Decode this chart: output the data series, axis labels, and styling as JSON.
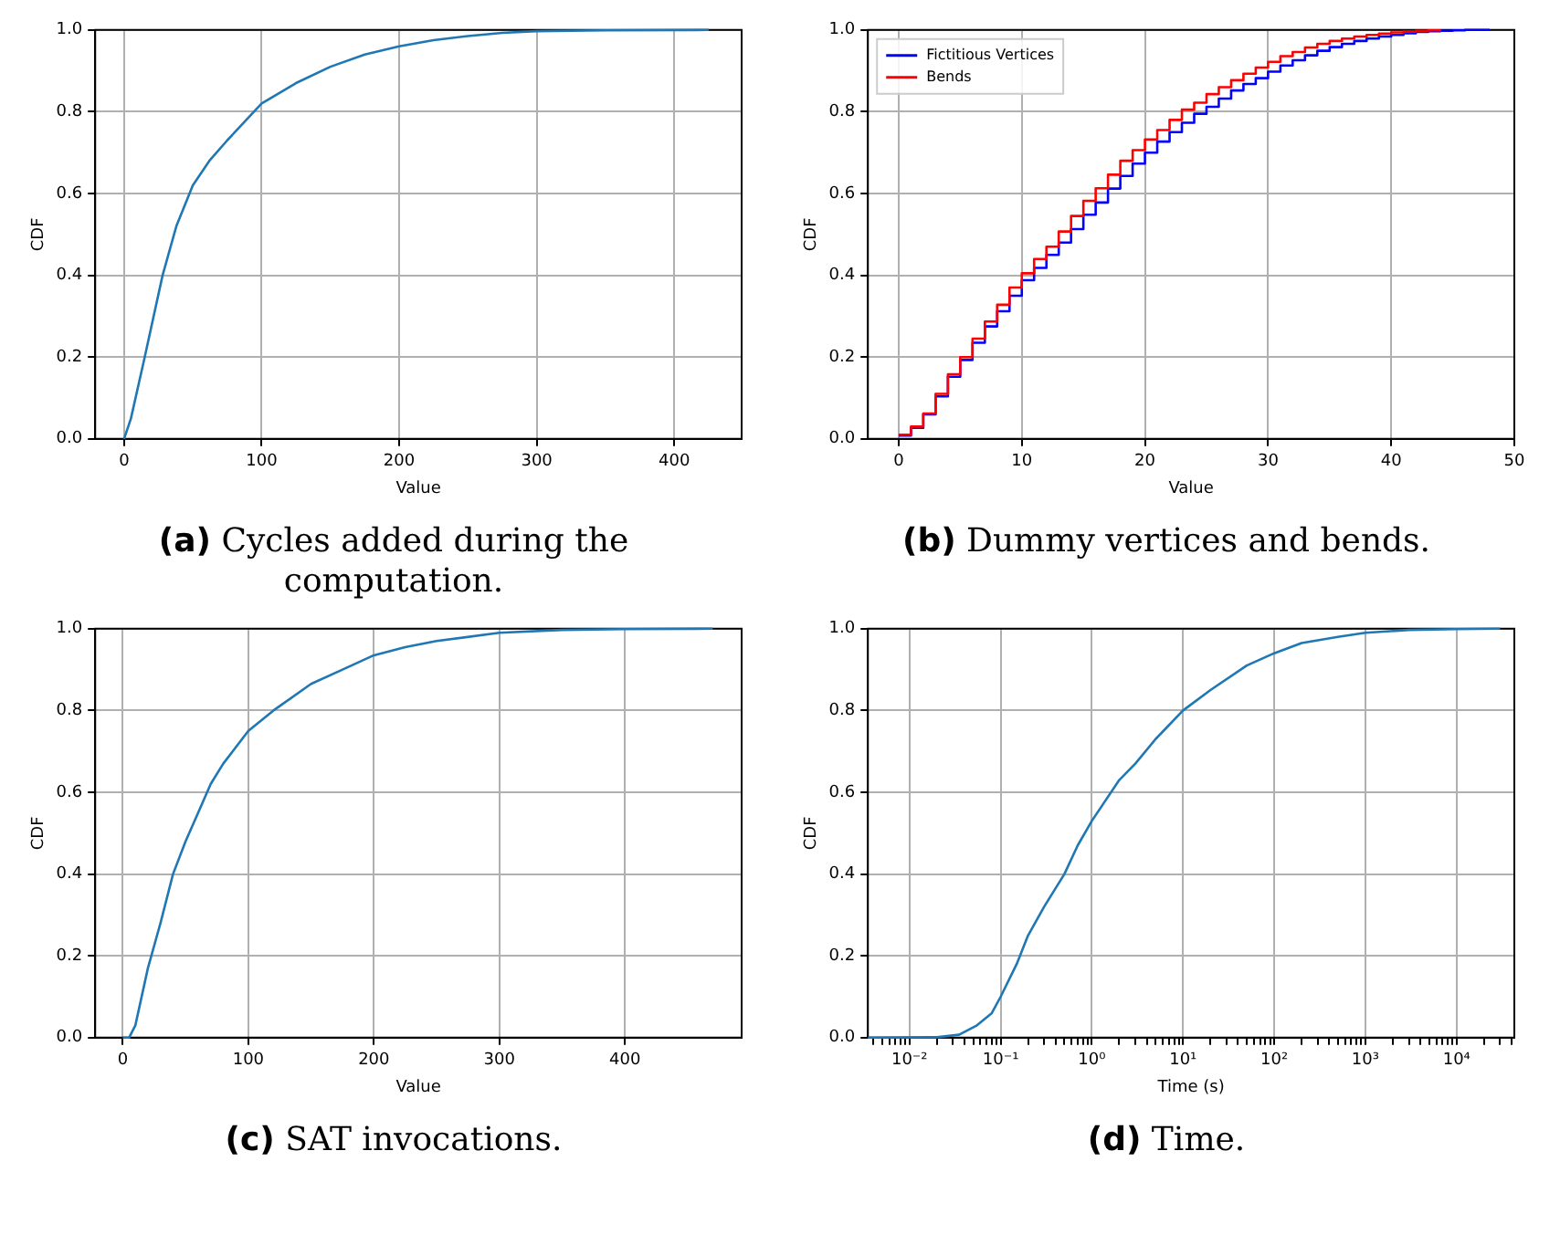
{
  "chart_data": [
    {
      "type": "line",
      "xlabel": "Value",
      "ylabel": "CDF",
      "annotations": [
        "(a) Cycles added during the computation."
      ],
      "grid": true,
      "xlim": [
        -21,
        449
      ],
      "ylim": [
        0,
        1
      ],
      "xticks": [
        0,
        100,
        200,
        300,
        400
      ],
      "yticks": [
        {
          "value": 0,
          "label": "0.0"
        },
        {
          "value": 0.2,
          "label": "0.2"
        },
        {
          "value": 0.4,
          "label": "0.4"
        },
        {
          "value": 0.6,
          "label": "0.6"
        },
        {
          "value": 0.8,
          "label": "0.8"
        },
        {
          "value": 1,
          "label": "1.0"
        }
      ],
      "x": [
        0,
        5,
        15,
        28,
        38,
        50,
        62,
        75,
        100,
        125,
        150,
        175,
        200,
        225,
        250,
        275,
        300,
        350,
        425
      ],
      "series": [
        {
          "color": "#1f77b4",
          "values": [
            0,
            0.05,
            0.2,
            0.4,
            0.52,
            0.62,
            0.68,
            0.73,
            0.82,
            0.87,
            0.91,
            0.94,
            0.96,
            0.975,
            0.985,
            0.993,
            0.997,
            0.999,
            1
          ]
        }
      ]
    },
    {
      "type": "step",
      "xlabel": "Value",
      "ylabel": "CDF",
      "annotations": [
        "(b) Dummy vertices and bends."
      ],
      "grid": true,
      "legend": "top left",
      "xlim": [
        -2.5,
        50
      ],
      "ylim": [
        0,
        1
      ],
      "xticks": [
        0,
        10,
        20,
        30,
        40,
        50
      ],
      "yticks": [
        {
          "value": 0,
          "label": "0.0"
        },
        {
          "value": 0.2,
          "label": "0.2"
        },
        {
          "value": 0.4,
          "label": "0.4"
        },
        {
          "value": 0.6,
          "label": "0.6"
        },
        {
          "value": 0.8,
          "label": "0.8"
        },
        {
          "value": 1,
          "label": "1.0"
        }
      ],
      "x": [
        0,
        1,
        2,
        3,
        4,
        5,
        6,
        7,
        8,
        9,
        10,
        11,
        12,
        13,
        14,
        15,
        16,
        17,
        18,
        19,
        20,
        21,
        22,
        23,
        24,
        25,
        26,
        27,
        28,
        29,
        30,
        31,
        32,
        33,
        34,
        35,
        36,
        37,
        38,
        39,
        40,
        41,
        42,
        43,
        44,
        45,
        46,
        48
      ],
      "series": [
        {
          "name": "Fictitious Vertices",
          "color": "#0000ff",
          "values": [
            0.008,
            0.027,
            0.06,
            0.104,
            0.152,
            0.193,
            0.235,
            0.275,
            0.312,
            0.35,
            0.388,
            0.418,
            0.45,
            0.48,
            0.513,
            0.548,
            0.578,
            0.612,
            0.643,
            0.673,
            0.7,
            0.727,
            0.75,
            0.773,
            0.795,
            0.812,
            0.832,
            0.852,
            0.868,
            0.882,
            0.898,
            0.913,
            0.926,
            0.938,
            0.949,
            0.958,
            0.966,
            0.973,
            0.979,
            0.984,
            0.988,
            0.992,
            0.995,
            0.997,
            0.998,
            0.999,
            1,
            1
          ]
        },
        {
          "name": "Bends",
          "color": "#ff0000",
          "x": [
            0,
            1,
            2,
            3,
            4,
            5,
            6,
            7,
            8,
            9,
            10,
            11,
            12,
            13,
            14,
            15,
            16,
            17,
            18,
            19,
            20,
            21,
            22,
            23,
            24,
            25,
            26,
            27,
            28,
            29,
            30,
            31,
            32,
            33,
            34,
            35,
            36,
            37,
            38,
            39,
            40,
            41,
            42,
            43,
            44
          ],
          "values": [
            0.01,
            0.03,
            0.062,
            0.11,
            0.158,
            0.2,
            0.245,
            0.287,
            0.328,
            0.37,
            0.405,
            0.44,
            0.47,
            0.507,
            0.545,
            0.582,
            0.613,
            0.646,
            0.68,
            0.706,
            0.732,
            0.755,
            0.78,
            0.805,
            0.822,
            0.843,
            0.86,
            0.877,
            0.893,
            0.908,
            0.922,
            0.936,
            0.946,
            0.957,
            0.966,
            0.973,
            0.979,
            0.984,
            0.988,
            0.991,
            0.994,
            0.996,
            0.998,
            0.999,
            1
          ]
        }
      ]
    },
    {
      "type": "line",
      "xlabel": "Value",
      "ylabel": "CDF",
      "annotations": [
        "(c) SAT invocations."
      ],
      "grid": true,
      "xlim": [
        -22,
        493
      ],
      "ylim": [
        0,
        1
      ],
      "xticks": [
        0,
        100,
        200,
        300,
        400
      ],
      "yticks": [
        {
          "value": 0,
          "label": "0.0"
        },
        {
          "value": 0.2,
          "label": "0.2"
        },
        {
          "value": 0.4,
          "label": "0.4"
        },
        {
          "value": 0.6,
          "label": "0.6"
        },
        {
          "value": 0.8,
          "label": "0.8"
        },
        {
          "value": 1,
          "label": "1.0"
        }
      ],
      "x": [
        0,
        5,
        10,
        20,
        30,
        40,
        50,
        60,
        70,
        80,
        100,
        120,
        150,
        175,
        200,
        225,
        250,
        300,
        350,
        400,
        470
      ],
      "series": [
        {
          "color": "#1f77b4",
          "values": [
            0,
            0,
            0.03,
            0.17,
            0.28,
            0.4,
            0.48,
            0.55,
            0.62,
            0.67,
            0.75,
            0.8,
            0.865,
            0.9,
            0.935,
            0.955,
            0.97,
            0.99,
            0.997,
            0.999,
            1
          ]
        }
      ]
    },
    {
      "type": "line",
      "xlabel": "Time (s)",
      "ylabel": "CDF",
      "annotations": [
        "(d) Time."
      ],
      "grid": true,
      "log": "x",
      "xlim": [
        0.0035,
        43000
      ],
      "ylim": [
        0,
        1
      ],
      "xticks": [
        {
          "value": 0.004,
          "label": null
        },
        {
          "value": 0.005,
          "label": null
        },
        {
          "value": 0.006,
          "label": null
        },
        {
          "value": 0.007,
          "label": null
        },
        {
          "value": 0.008,
          "label": null
        },
        {
          "value": 0.009,
          "label": null
        },
        {
          "value": 0.01,
          "label": "10⁻²"
        },
        {
          "value": 0.02,
          "label": null
        },
        {
          "value": 0.03,
          "label": null
        },
        {
          "value": 0.04,
          "label": null
        },
        {
          "value": 0.05,
          "label": null
        },
        {
          "value": 0.06,
          "label": null
        },
        {
          "value": 0.07,
          "label": null
        },
        {
          "value": 0.08,
          "label": null
        },
        {
          "value": 0.09,
          "label": null
        },
        {
          "value": 0.1,
          "label": "10⁻¹"
        },
        {
          "value": 0.2,
          "label": null
        },
        {
          "value": 0.3,
          "label": null
        },
        {
          "value": 0.4,
          "label": null
        },
        {
          "value": 0.5,
          "label": null
        },
        {
          "value": 0.6,
          "label": null
        },
        {
          "value": 0.7,
          "label": null
        },
        {
          "value": 0.8,
          "label": null
        },
        {
          "value": 0.9,
          "label": null
        },
        {
          "value": 1,
          "label": "10⁰"
        },
        {
          "value": 2,
          "label": null
        },
        {
          "value": 3,
          "label": null
        },
        {
          "value": 4,
          "label": null
        },
        {
          "value": 5,
          "label": null
        },
        {
          "value": 6,
          "label": null
        },
        {
          "value": 7,
          "label": null
        },
        {
          "value": 8,
          "label": null
        },
        {
          "value": 9,
          "label": null
        },
        {
          "value": 10,
          "label": "10¹"
        },
        {
          "value": 20,
          "label": null
        },
        {
          "value": 30,
          "label": null
        },
        {
          "value": 40,
          "label": null
        },
        {
          "value": 50,
          "label": null
        },
        {
          "value": 60,
          "label": null
        },
        {
          "value": 70,
          "label": null
        },
        {
          "value": 80,
          "label": null
        },
        {
          "value": 90,
          "label": null
        },
        {
          "value": 100,
          "label": "10²"
        },
        {
          "value": 200,
          "label": null
        },
        {
          "value": 300,
          "label": null
        },
        {
          "value": 400,
          "label": null
        },
        {
          "value": 500,
          "label": null
        },
        {
          "value": 600,
          "label": null
        },
        {
          "value": 700,
          "label": null
        },
        {
          "value": 800,
          "label": null
        },
        {
          "value": 900,
          "label": null
        },
        {
          "value": 1000,
          "label": "10³"
        },
        {
          "value": 2000,
          "label": null
        },
        {
          "value": 3000,
          "label": null
        },
        {
          "value": 4000,
          "label": null
        },
        {
          "value": 5000,
          "label": null
        },
        {
          "value": 6000,
          "label": null
        },
        {
          "value": 7000,
          "label": null
        },
        {
          "value": 8000,
          "label": null
        },
        {
          "value": 9000,
          "label": null
        },
        {
          "value": 10000,
          "label": "10⁴"
        },
        {
          "value": 20000,
          "label": null
        },
        {
          "value": 30000,
          "label": null
        },
        {
          "value": 40000,
          "label": null
        }
      ],
      "yticks": [
        {
          "value": 0,
          "label": "0.0"
        },
        {
          "value": 0.2,
          "label": "0.2"
        },
        {
          "value": 0.4,
          "label": "0.4"
        },
        {
          "value": 0.6,
          "label": "0.6"
        },
        {
          "value": 0.8,
          "label": "0.8"
        },
        {
          "value": 1,
          "label": "1.0"
        }
      ],
      "x": [
        0.0035,
        0.02,
        0.035,
        0.055,
        0.08,
        0.1,
        0.15,
        0.2,
        0.3,
        0.5,
        0.7,
        1,
        2,
        3,
        5,
        10,
        20,
        50,
        100,
        200,
        500,
        1000,
        3000,
        10000,
        30000
      ],
      "series": [
        {
          "color": "#1f77b4",
          "values": [
            0,
            0.001,
            0.007,
            0.03,
            0.06,
            0.1,
            0.18,
            0.25,
            0.32,
            0.4,
            0.47,
            0.53,
            0.63,
            0.67,
            0.73,
            0.8,
            0.85,
            0.91,
            0.94,
            0.965,
            0.98,
            0.99,
            0.997,
            0.999,
            1
          ]
        }
      ]
    }
  ]
}
